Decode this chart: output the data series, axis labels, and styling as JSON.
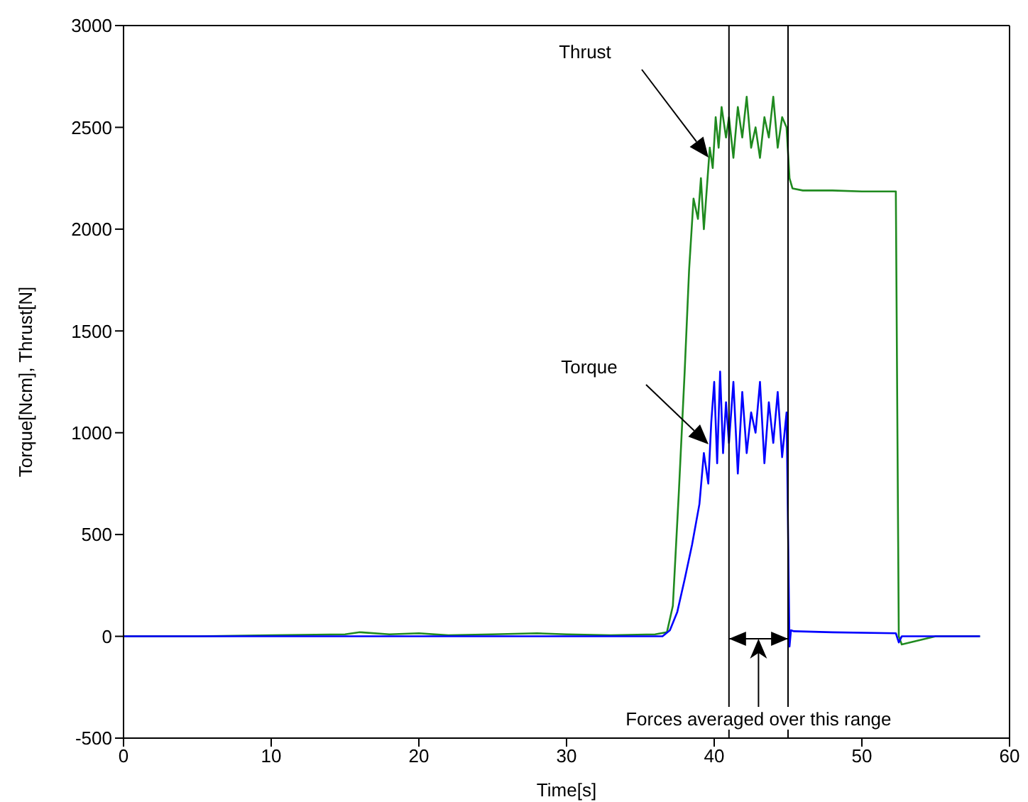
{
  "chart_data": {
    "type": "line",
    "xlabel": "Time[s]",
    "ylabel": "Torque[Ncm], Thrust[N]",
    "xlim": [
      0,
      60
    ],
    "ylim": [
      -500,
      3000
    ],
    "xticks": [
      0,
      10,
      20,
      30,
      40,
      50,
      60
    ],
    "yticks": [
      -500,
      0,
      500,
      1000,
      1500,
      2000,
      2500,
      3000
    ],
    "grid": false,
    "legend": false,
    "marker": "none",
    "line_style": "solid",
    "series": [
      {
        "color": "#1f8a1f",
        "x": [
          0,
          5,
          10,
          15,
          16,
          18,
          20,
          22,
          25,
          28,
          30,
          33,
          36,
          36.8,
          37.2,
          37.6,
          38,
          38.3,
          38.6,
          38.9,
          39.1,
          39.3,
          39.5,
          39.7,
          39.9,
          40.1,
          40.3,
          40.5,
          40.8,
          41,
          41.3,
          41.6,
          41.9,
          42.2,
          42.5,
          42.8,
          43.1,
          43.4,
          43.7,
          44,
          44.3,
          44.6,
          44.9,
          45.1,
          45.3,
          46,
          48,
          50,
          52.3,
          52.5,
          52.7,
          55,
          58
        ],
        "values": [
          0,
          0,
          5,
          10,
          20,
          10,
          15,
          5,
          10,
          15,
          10,
          5,
          10,
          20,
          150,
          700,
          1300,
          1800,
          2150,
          2050,
          2250,
          2000,
          2200,
          2400,
          2300,
          2550,
          2400,
          2600,
          2450,
          2550,
          2350,
          2600,
          2450,
          2650,
          2400,
          2500,
          2350,
          2550,
          2450,
          2650,
          2400,
          2550,
          2500,
          2250,
          2200,
          2190,
          2190,
          2185,
          2185,
          0,
          -40,
          0,
          0
        ]
      },
      {
        "color": "#0000ff",
        "x": [
          0,
          5,
          10,
          15,
          20,
          25,
          30,
          35,
          36.5,
          37,
          37.5,
          38,
          38.5,
          39,
          39.3,
          39.6,
          39.8,
          40,
          40.2,
          40.4,
          40.6,
          40.8,
          41,
          41.3,
          41.6,
          41.9,
          42.2,
          42.5,
          42.8,
          43.1,
          43.4,
          43.7,
          44,
          44.3,
          44.6,
          44.9,
          45.1,
          45.2,
          45.4,
          48,
          52.3,
          52.5,
          52.7,
          55,
          58
        ],
        "values": [
          0,
          0,
          0,
          0,
          0,
          0,
          0,
          0,
          0,
          30,
          120,
          280,
          450,
          650,
          900,
          750,
          1050,
          1250,
          850,
          1300,
          900,
          1150,
          950,
          1250,
          800,
          1200,
          900,
          1100,
          1000,
          1250,
          850,
          1150,
          950,
          1200,
          880,
          1100,
          -50,
          30,
          25,
          20,
          15,
          -30,
          0,
          0,
          0
        ]
      }
    ],
    "ref_lines": [
      {
        "axis": "x",
        "value": 41,
        "color": "#000000"
      },
      {
        "axis": "x",
        "value": 45,
        "color": "#000000"
      }
    ],
    "annotations": [
      "Thrust",
      "Torque",
      "Forces averaged over this range"
    ]
  }
}
